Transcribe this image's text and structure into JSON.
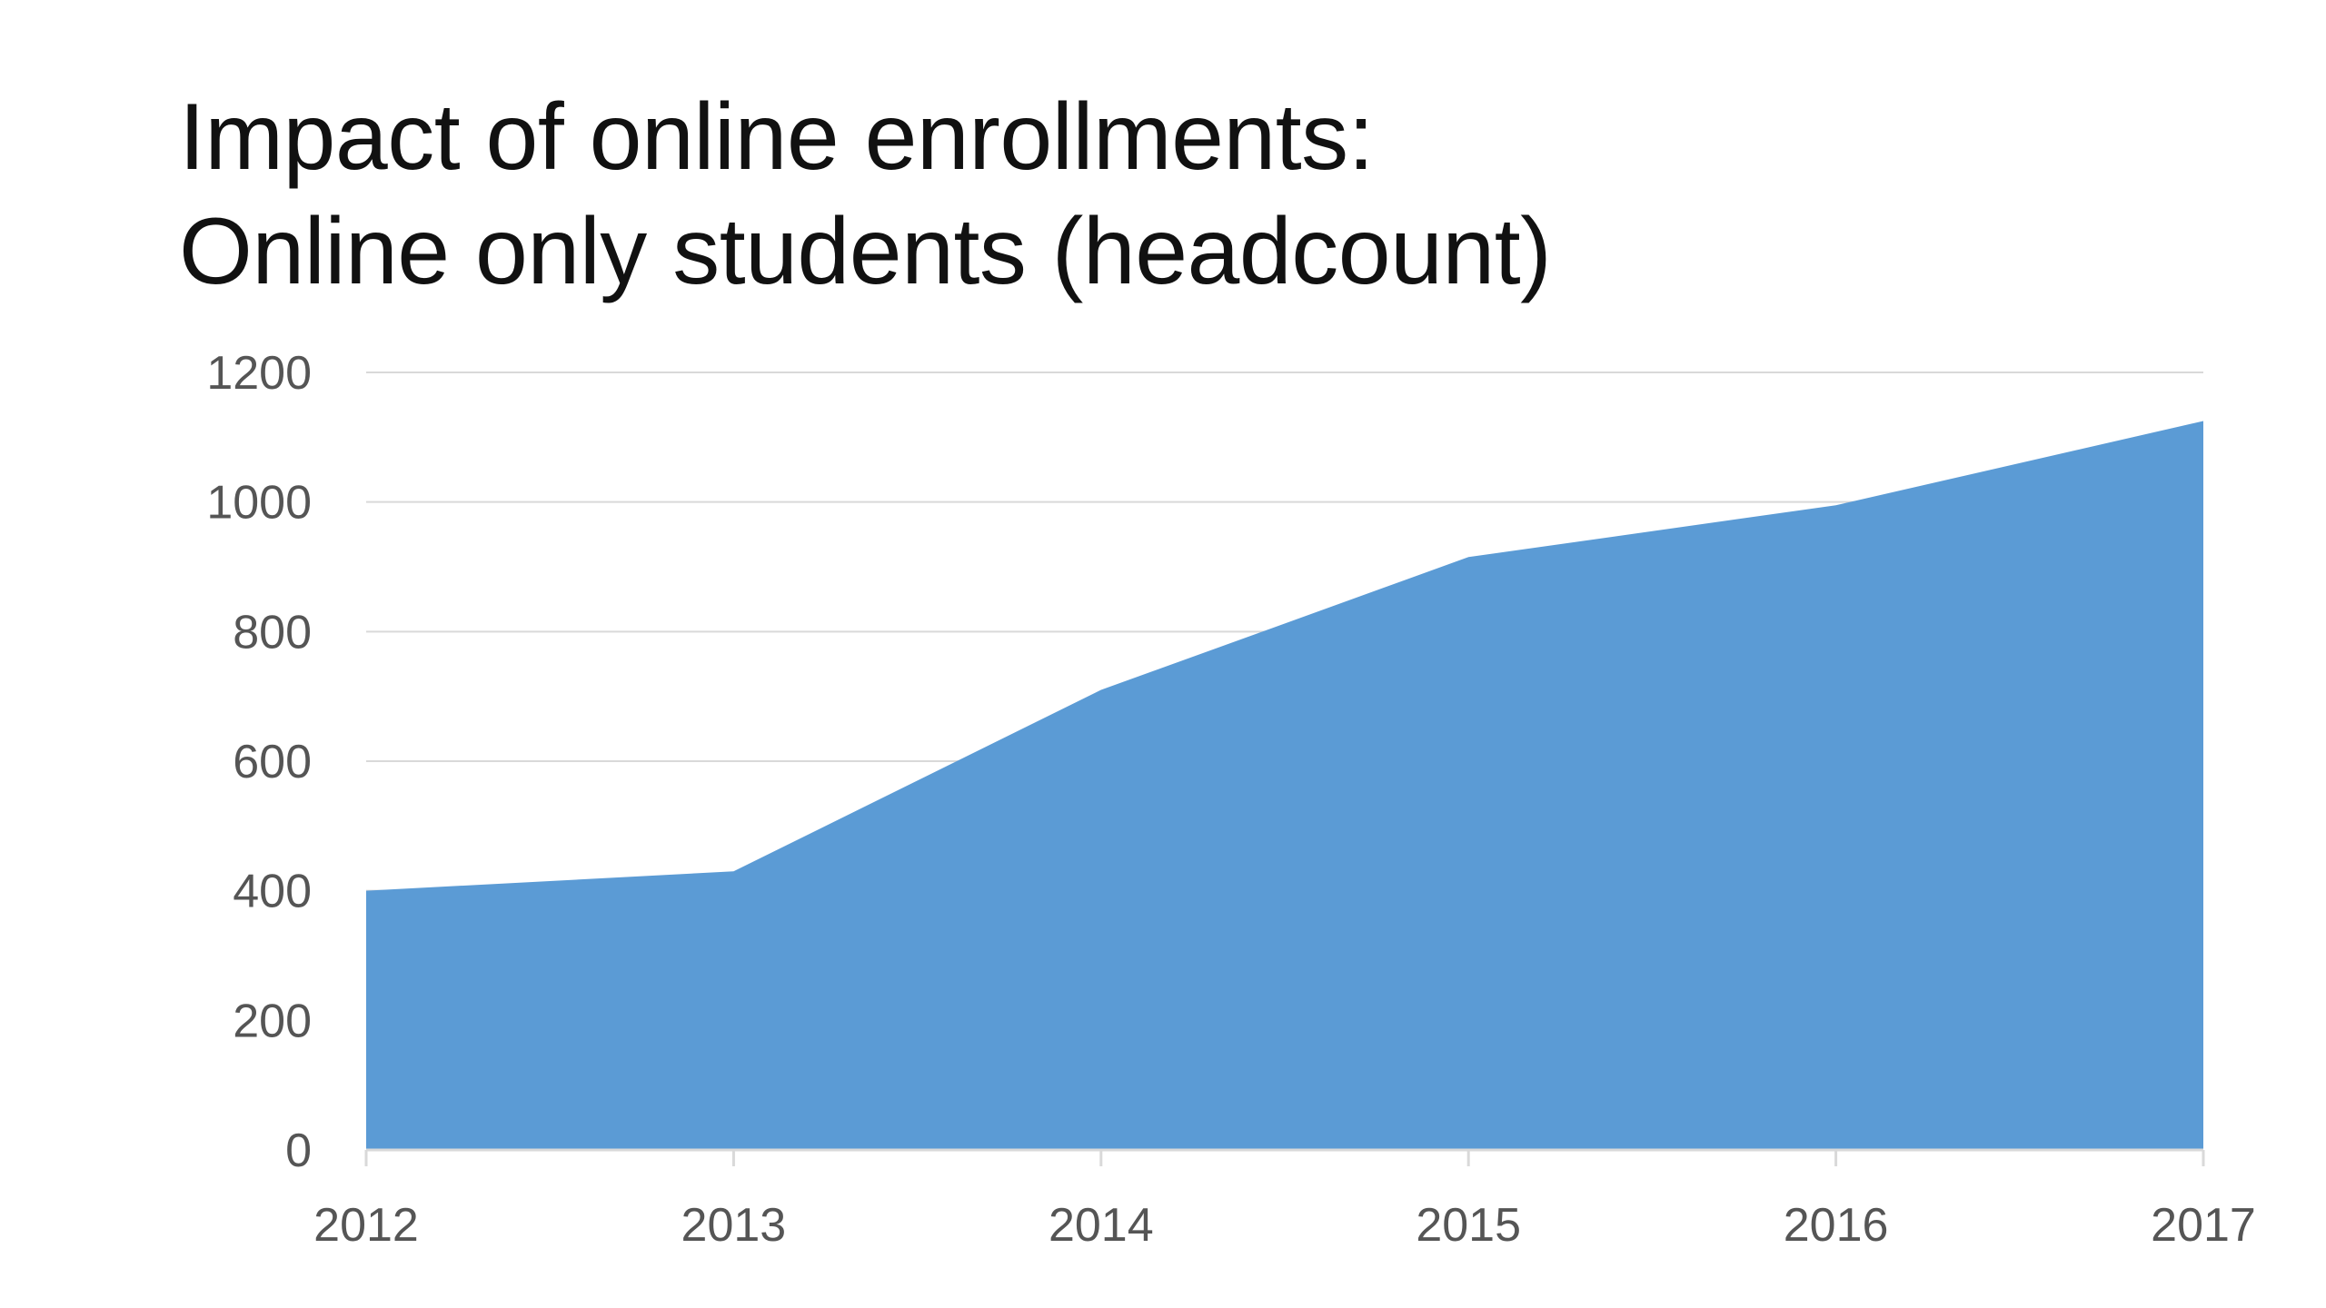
{
  "slide": {
    "title_line1": "Impact of online enrollments:",
    "title_line2": "Online only students (headcount)"
  },
  "chart_data": {
    "type": "area",
    "x": [
      "2012",
      "2013",
      "2014",
      "2015",
      "2016",
      "2017"
    ],
    "series": [
      {
        "values": [
          400,
          430,
          710,
          915,
          995,
          1125
        ],
        "color": "#5B9BD5"
      }
    ],
    "ylim": [
      0,
      1200
    ],
    "yticks": [
      0,
      200,
      400,
      600,
      800,
      1000,
      1200
    ],
    "grid": true,
    "gridColor": "#D9D9D9",
    "legend": "none"
  }
}
